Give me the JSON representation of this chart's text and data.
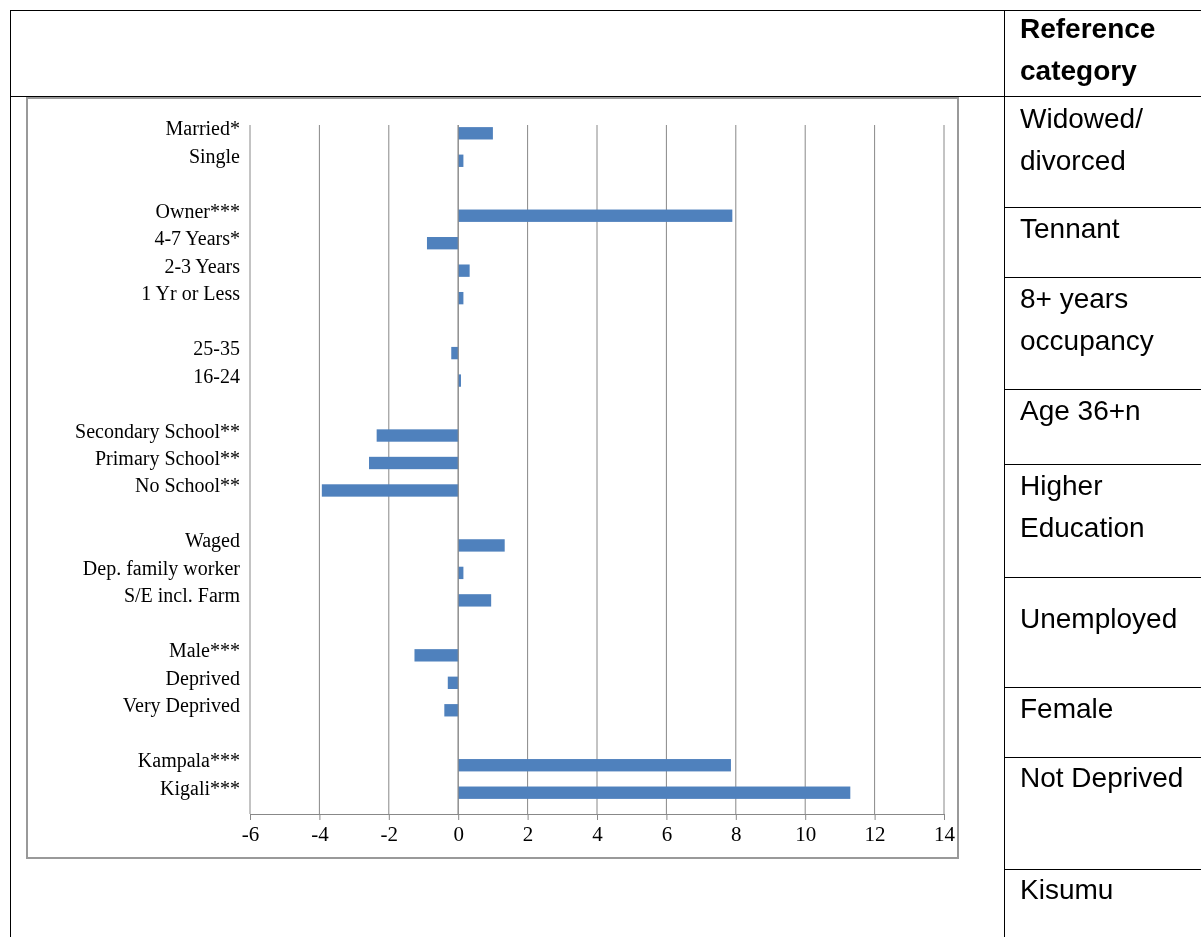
{
  "chart_data": {
    "type": "bar",
    "orientation": "horizontal",
    "categories": [
      "Married*",
      "Single",
      null,
      "Owner***",
      "4-7 Years*",
      "2-3 Years",
      "1 Yr or Less",
      null,
      "25-35",
      "16-24",
      null,
      "Secondary School**",
      "Primary School**",
      "No School**",
      null,
      "Waged",
      "Dep. family worker",
      "S/E incl. Farm",
      null,
      "Male***",
      "Deprived",
      "Very Deprived",
      null,
      "Kampala***",
      "Kigali***"
    ],
    "values": [
      1.0,
      0.15,
      null,
      7.9,
      -0.9,
      0.33,
      0.15,
      null,
      -0.2,
      0.08,
      null,
      -2.35,
      -2.57,
      -3.93,
      null,
      1.34,
      0.15,
      0.95,
      null,
      -1.26,
      -0.3,
      -0.4,
      null,
      7.86,
      11.3
    ],
    "color": "#4f81bd",
    "xlim": [
      -6,
      14
    ],
    "xticks": [
      -6,
      -4,
      -2,
      0,
      2,
      4,
      6,
      8,
      10,
      12,
      14
    ],
    "grid": "x",
    "annotations": [
      "Reference category",
      "Widowed/ divorced",
      "Tennant",
      "8+ years occupancy",
      "Age 36+n",
      "Higher Education",
      "Unemployed",
      "Female",
      "Not Deprived",
      "Kisumu"
    ]
  }
}
